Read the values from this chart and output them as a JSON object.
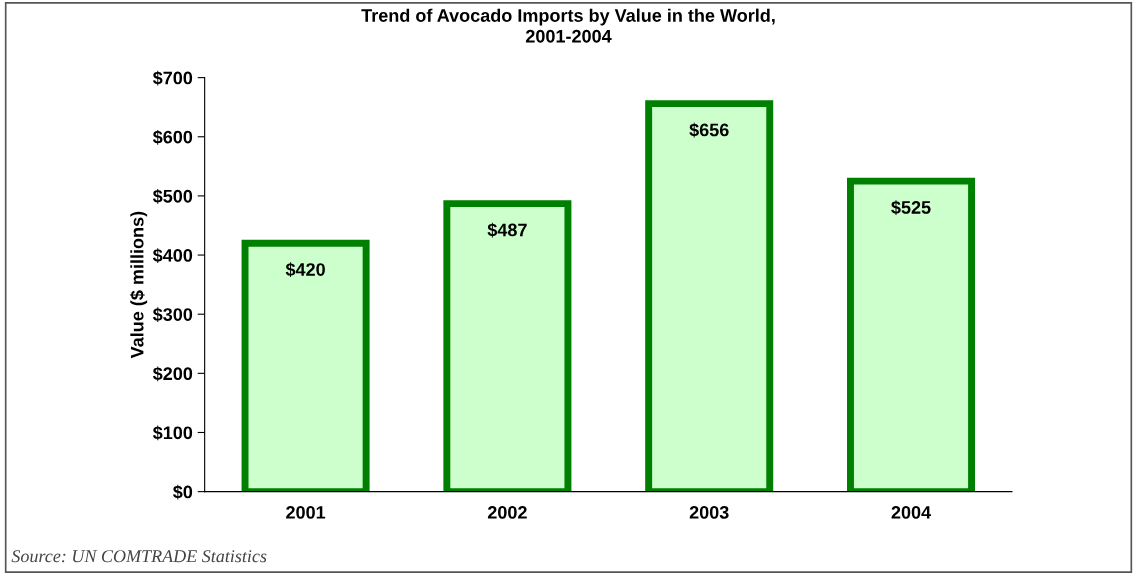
{
  "chart_data": {
    "type": "bar",
    "title": "Trend of Avocado Imports by Value in the World,\n2001-2004",
    "ylabel": "Value ($ millions)",
    "categories": [
      "2001",
      "2002",
      "2003",
      "2004"
    ],
    "values": [
      420,
      487,
      656,
      525
    ],
    "value_labels": [
      "$420",
      "$487",
      "$656",
      "$525"
    ],
    "color": "#ccffcc",
    "ylim": [
      0,
      700
    ],
    "yticks": [
      {
        "value": 0,
        "label": "$0"
      },
      {
        "value": 100,
        "label": "$100"
      },
      {
        "value": 200,
        "label": "$200"
      },
      {
        "value": 300,
        "label": "$300"
      },
      {
        "value": 400,
        "label": "$400"
      },
      {
        "value": 500,
        "label": "$500"
      },
      {
        "value": 600,
        "label": "$600"
      },
      {
        "value": 700,
        "label": "$700"
      }
    ],
    "annotations": [
      "Source: UN COMTRADE Statistics"
    ],
    "grid": false,
    "legend": false
  }
}
